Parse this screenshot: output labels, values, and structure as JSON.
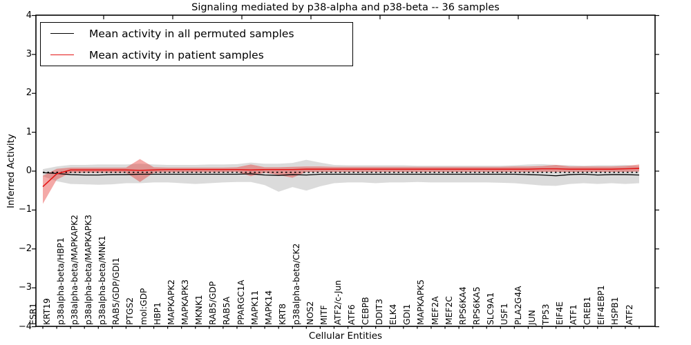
{
  "chart_data": {
    "type": "line",
    "title": "Signaling mediated by p38-alpha and p38-beta -- 36 samples",
    "xlabel": "Cellular Entities",
    "ylabel": "Inferred Activity",
    "ylim": [
      -4,
      4
    ],
    "yticks": [
      4,
      3,
      2,
      1,
      0,
      -1,
      -2,
      -3,
      -4
    ],
    "grid": false,
    "legend_position": "upper left",
    "categories": [
      "ESR1",
      "KRT19",
      "p38alpha-beta/HBP1",
      "p38alpha-beta/MAPKAPK2",
      "p38alpha-beta/MAPKAPK3",
      "p38alpha-beta/MNK1",
      "RAB5/GDP/GDI1",
      "PTGS2",
      "mol:GDP",
      "HBP1",
      "MAPKAPK2",
      "MAPKAPK3",
      "MKNK1",
      "RAB5/GDP",
      "RAB5A",
      "PPARGC1A",
      "MAPK11",
      "MAPK14",
      "KRT8",
      "p38alpha-beta/CK2",
      "NOS2",
      "MITF",
      "ATF2/c-Jun",
      "ATF6",
      "CEBPB",
      "DDIT3",
      "ELK4",
      "GDI1",
      "MAPKAPK5",
      "MEF2A",
      "MEF2C",
      "RPS6KA4",
      "RPS6KA5",
      "SLC9A1",
      "USF1",
      "PLA2G4A",
      "JUN",
      "TP53",
      "EIF4E",
      "ATF1",
      "CREB1",
      "EIF4EBP1",
      "HSPB1",
      "ATF2"
    ],
    "series": [
      {
        "name": "Mean activity in all permuted samples",
        "color": "#000000",
        "values": [
          -0.04,
          -0.06,
          -0.09,
          -0.1,
          -0.1,
          -0.09,
          -0.09,
          -0.08,
          -0.08,
          -0.08,
          -0.08,
          -0.08,
          -0.08,
          -0.08,
          -0.08,
          -0.07,
          -0.1,
          -0.11,
          -0.09,
          -0.1,
          -0.08,
          -0.08,
          -0.08,
          -0.08,
          -0.08,
          -0.08,
          -0.08,
          -0.08,
          -0.08,
          -0.08,
          -0.08,
          -0.08,
          -0.08,
          -0.08,
          -0.08,
          -0.09,
          -0.1,
          -0.12,
          -0.09,
          -0.08,
          -0.1,
          -0.09,
          -0.09,
          -0.1
        ],
        "band": {
          "upper": [
            0.05,
            0.12,
            0.16,
            0.16,
            0.17,
            0.17,
            0.17,
            0.19,
            0.17,
            0.16,
            0.16,
            0.16,
            0.17,
            0.17,
            0.18,
            0.22,
            0.19,
            0.19,
            0.21,
            0.29,
            0.22,
            0.16,
            0.15,
            0.15,
            0.15,
            0.15,
            0.15,
            0.14,
            0.14,
            0.14,
            0.14,
            0.14,
            0.14,
            0.14,
            0.15,
            0.17,
            0.18,
            0.16,
            0.15,
            0.14,
            0.15,
            0.15,
            0.16,
            0.13
          ],
          "lower": [
            -0.13,
            -0.26,
            -0.33,
            -0.34,
            -0.35,
            -0.34,
            -0.31,
            -0.31,
            -0.29,
            -0.29,
            -0.31,
            -0.33,
            -0.31,
            -0.29,
            -0.28,
            -0.28,
            -0.36,
            -0.53,
            -0.41,
            -0.5,
            -0.39,
            -0.31,
            -0.29,
            -0.29,
            -0.31,
            -0.29,
            -0.29,
            -0.28,
            -0.29,
            -0.29,
            -0.29,
            -0.29,
            -0.29,
            -0.3,
            -0.31,
            -0.34,
            -0.37,
            -0.38,
            -0.33,
            -0.31,
            -0.33,
            -0.31,
            -0.33,
            -0.31
          ],
          "fill": "rgba(160,160,160,0.38)"
        }
      },
      {
        "name": "Mean activity in patient samples",
        "color": "#e41414",
        "values": [
          -0.4,
          -0.07,
          0.03,
          0.03,
          0.03,
          0.03,
          0.03,
          0.02,
          0.03,
          0.04,
          0.04,
          0.04,
          0.04,
          0.04,
          0.04,
          0.03,
          0.04,
          0.04,
          0.04,
          0.05,
          0.05,
          0.05,
          0.05,
          0.05,
          0.05,
          0.05,
          0.05,
          0.05,
          0.05,
          0.05,
          0.05,
          0.05,
          0.05,
          0.05,
          0.05,
          0.05,
          0.06,
          0.06,
          0.05,
          0.05,
          0.05,
          0.05,
          0.06,
          0.07
        ],
        "band": {
          "upper": [
            -0.12,
            0.06,
            0.09,
            0.09,
            0.09,
            0.09,
            0.09,
            0.31,
            0.1,
            0.09,
            0.09,
            0.09,
            0.09,
            0.09,
            0.1,
            0.17,
            0.1,
            0.1,
            0.11,
            0.12,
            0.12,
            0.11,
            0.11,
            0.11,
            0.11,
            0.11,
            0.11,
            0.11,
            0.11,
            0.11,
            0.11,
            0.11,
            0.11,
            0.11,
            0.12,
            0.12,
            0.13,
            0.16,
            0.12,
            0.12,
            0.12,
            0.12,
            0.13,
            0.17
          ],
          "lower": [
            -0.84,
            -0.22,
            -0.04,
            -0.04,
            -0.04,
            -0.04,
            -0.04,
            -0.28,
            -0.04,
            -0.03,
            -0.03,
            -0.03,
            -0.03,
            -0.03,
            -0.02,
            -0.13,
            -0.04,
            -0.1,
            -0.17,
            -0.02,
            -0.02,
            -0.02,
            -0.02,
            -0.02,
            -0.02,
            -0.02,
            -0.02,
            -0.02,
            -0.02,
            -0.02,
            -0.02,
            -0.02,
            -0.02,
            -0.02,
            -0.02,
            -0.02,
            -0.02,
            -0.02,
            -0.02,
            -0.02,
            -0.02,
            -0.02,
            -0.02,
            -0.01
          ],
          "fill": "rgba(228,50,45,0.42)"
        }
      }
    ],
    "reference_line": {
      "value": -0.03,
      "style": "dotted",
      "color": "#000000"
    }
  }
}
